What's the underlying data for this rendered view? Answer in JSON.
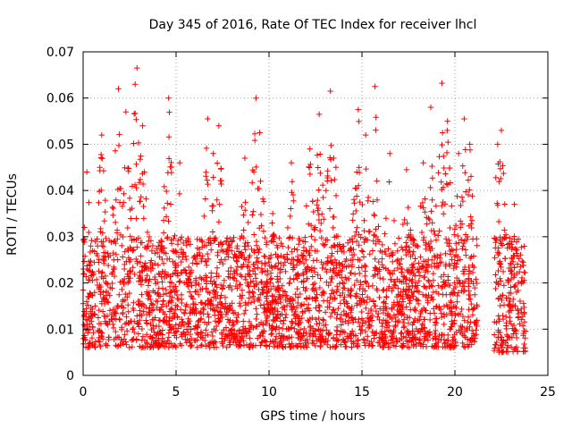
{
  "chart_data": {
    "type": "scatter",
    "title": "Day 345 of 2016, Rate Of TEC Index for receiver lhcl",
    "xlabel": "GPS time / hours",
    "ylabel": "ROTI / TECUs",
    "xlim": [
      0,
      25
    ],
    "ylim": [
      0,
      0.07
    ],
    "xticks": [
      "0",
      "5",
      "10",
      "15",
      "20",
      "25"
    ],
    "yticks": [
      "0",
      "0.01",
      "0.02",
      "0.03",
      "0.04",
      "0.05",
      "0.06",
      "0.07"
    ],
    "grid": true,
    "marker": "+",
    "color": "#ff0000",
    "series": [
      {
        "name": "ROTI",
        "segments": [
          {
            "x_start": 0.0,
            "x_end": 21.2,
            "baseline_min": 0.006,
            "baseline_max": 0.03
          },
          {
            "x_start": 22.1,
            "x_end": 23.8,
            "baseline_min": 0.005,
            "baseline_max": 0.03
          }
        ],
        "peaks": [
          {
            "x": 0.2,
            "y": 0.044
          },
          {
            "x": 0.9,
            "y": 0.045
          },
          {
            "x": 1.0,
            "y": 0.052
          },
          {
            "x": 1.9,
            "y": 0.062
          },
          {
            "x": 2.3,
            "y": 0.057
          },
          {
            "x": 2.8,
            "y": 0.063
          },
          {
            "x": 2.9,
            "y": 0.0665
          },
          {
            "x": 3.2,
            "y": 0.054
          },
          {
            "x": 4.6,
            "y": 0.06
          },
          {
            "x": 5.2,
            "y": 0.046
          },
          {
            "x": 6.7,
            "y": 0.0555
          },
          {
            "x": 7.0,
            "y": 0.048
          },
          {
            "x": 7.3,
            "y": 0.054
          },
          {
            "x": 8.7,
            "y": 0.047
          },
          {
            "x": 9.3,
            "y": 0.06
          },
          {
            "x": 9.5,
            "y": 0.0525
          },
          {
            "x": 10.2,
            "y": 0.035
          },
          {
            "x": 11.2,
            "y": 0.046
          },
          {
            "x": 12.2,
            "y": 0.049
          },
          {
            "x": 12.7,
            "y": 0.0565
          },
          {
            "x": 13.3,
            "y": 0.0615
          },
          {
            "x": 13.6,
            "y": 0.045
          },
          {
            "x": 14.8,
            "y": 0.0575
          },
          {
            "x": 15.2,
            "y": 0.052
          },
          {
            "x": 15.7,
            "y": 0.0625
          },
          {
            "x": 16.5,
            "y": 0.048
          },
          {
            "x": 17.4,
            "y": 0.0445
          },
          {
            "x": 18.3,
            "y": 0.046
          },
          {
            "x": 18.7,
            "y": 0.058
          },
          {
            "x": 19.3,
            "y": 0.0632
          },
          {
            "x": 19.6,
            "y": 0.055
          },
          {
            "x": 20.2,
            "y": 0.048
          },
          {
            "x": 20.5,
            "y": 0.0555
          },
          {
            "x": 20.8,
            "y": 0.05
          },
          {
            "x": 22.3,
            "y": 0.05
          },
          {
            "x": 22.5,
            "y": 0.053
          },
          {
            "x": 23.2,
            "y": 0.037
          }
        ]
      }
    ]
  }
}
